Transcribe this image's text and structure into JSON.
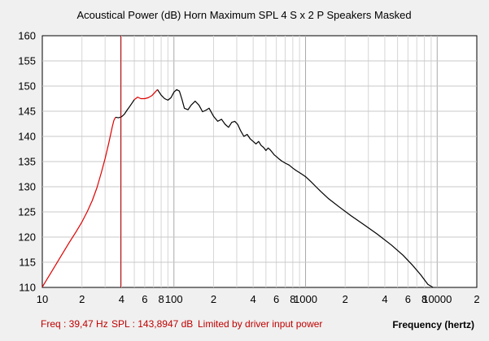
{
  "chart_data": {
    "type": "line",
    "title": "Acoustical Power (dB)   Horn   Maximum SPL   4 S x 2 P Speakers   Masked",
    "xlabel": "Frequency (hertz)",
    "ylabel": "",
    "x_scale": "log",
    "xlim": [
      10,
      20000
    ],
    "ylim": [
      110,
      160
    ],
    "grid": true,
    "y_ticks": [
      "110",
      "115",
      "120",
      "125",
      "130",
      "135",
      "140",
      "145",
      "150",
      "155",
      "160"
    ],
    "x_ticks": [
      {
        "value": 10,
        "label": "10"
      },
      {
        "value": 20,
        "label": "2"
      },
      {
        "value": 40,
        "label": "4"
      },
      {
        "value": 60,
        "label": "6"
      },
      {
        "value": 80,
        "label": "8"
      },
      {
        "value": 100,
        "label": "100"
      },
      {
        "value": 200,
        "label": "2"
      },
      {
        "value": 400,
        "label": "4"
      },
      {
        "value": 600,
        "label": "6"
      },
      {
        "value": 800,
        "label": "8"
      },
      {
        "value": 1000,
        "label": "1000"
      },
      {
        "value": 2000,
        "label": "2"
      },
      {
        "value": 4000,
        "label": "4"
      },
      {
        "value": 6000,
        "label": "6"
      },
      {
        "value": 8000,
        "label": "8"
      },
      {
        "value": 10000,
        "label": "10000"
      },
      {
        "value": 20000,
        "label": "2"
      }
    ],
    "cursor": {
      "x": 39.47,
      "color": "#c00000"
    },
    "series": [
      {
        "color": "#e00000",
        "x": [
          10,
          12,
          14,
          16,
          18,
          20,
          22,
          24,
          26,
          28,
          30,
          32,
          34,
          35,
          36
        ],
        "y": [
          110.1,
          113.5,
          116.4,
          118.9,
          121.0,
          123.0,
          125.1,
          127.3,
          129.8,
          132.7,
          135.6,
          138.7,
          141.9,
          143.2,
          143.8
        ]
      },
      {
        "color": "#000000",
        "x": [
          36,
          38,
          40,
          42,
          44,
          46,
          48,
          50
        ],
        "y": [
          143.8,
          143.7,
          143.9,
          144.4,
          145.2,
          145.9,
          146.6,
          147.3
        ]
      },
      {
        "color": "#e00000",
        "x": [
          50,
          53,
          56,
          60,
          64,
          68,
          72,
          75
        ],
        "y": [
          147.3,
          147.8,
          147.5,
          147.5,
          147.7,
          148.1,
          148.8,
          149.3
        ]
      },
      {
        "color": "#000000",
        "x": [
          75,
          80,
          85,
          90,
          95,
          100,
          105,
          110,
          115,
          120,
          128,
          135,
          145,
          155,
          165,
          175,
          185,
          200,
          215,
          230,
          245,
          260,
          275,
          290,
          305,
          320,
          340,
          360,
          380,
          400,
          420,
          440,
          460,
          480,
          500,
          520,
          540,
          560,
          580,
          600,
          630,
          660,
          700,
          750,
          800,
          850,
          900,
          950,
          1000,
          1100,
          1200,
          1300,
          1500,
          1800,
          2200,
          2800,
          3500,
          4500,
          5500,
          6500,
          7500,
          8500,
          9300
        ],
        "y": [
          149.3,
          148.2,
          147.5,
          147.2,
          147.7,
          148.8,
          149.3,
          149.0,
          147.4,
          145.6,
          145.3,
          146.2,
          147.0,
          146.2,
          144.9,
          145.2,
          145.6,
          144.0,
          143.0,
          143.4,
          142.4,
          141.8,
          142.8,
          143.0,
          142.4,
          141.2,
          140.0,
          140.4,
          139.5,
          139.0,
          138.5,
          139.0,
          138.2,
          137.8,
          137.2,
          137.7,
          137.3,
          136.8,
          136.3,
          136.0,
          135.5,
          135.1,
          134.7,
          134.3,
          133.7,
          133.2,
          132.8,
          132.4,
          132.0,
          131.0,
          130.0,
          129.1,
          127.6,
          126.0,
          124.3,
          122.4,
          120.6,
          118.4,
          116.4,
          114.4,
          112.5,
          110.6,
          110.0
        ]
      }
    ]
  },
  "status": {
    "freq": "Freq : 39,47 Hz",
    "spl": "SPL : 143,8947 dB",
    "note": "Limited by driver input power"
  }
}
